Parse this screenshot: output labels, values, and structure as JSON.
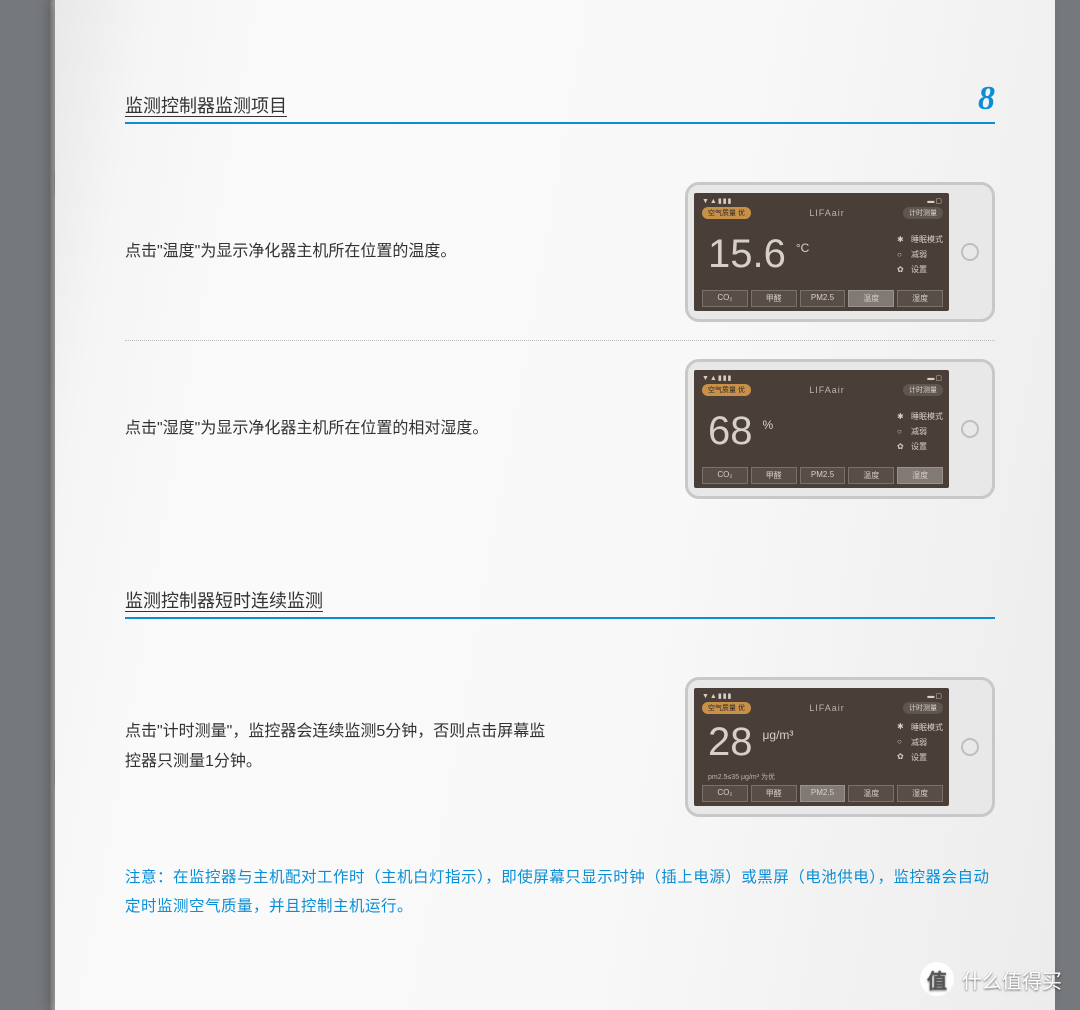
{
  "page_number": "8",
  "section1": {
    "title": "监测控制器监测项目",
    "items": [
      {
        "text": "点击\"温度\"为显示净化器主机所在位置的温度。"
      },
      {
        "text": "点击\"湿度\"为显示净化器主机所在位置的相对湿度。"
      }
    ]
  },
  "section2": {
    "title": "监测控制器短时连续监测",
    "text": "点击\"计时测量\"，监控器会连续监测5分钟，否则点击屏幕监控器只测量1分钟。",
    "note": "注意：在监控器与主机配对工作时（主机白灯指示），即使屏幕只显示时钟（插上电源）或黑屏（电池供电），监控器会自动定时监测空气质量，并且控制主机运行。"
  },
  "device_common": {
    "brand": "LIFAair",
    "status_left": "▼▲▮▮▮",
    "status_right": "▬▢",
    "air_quality_label": "空气质量",
    "air_quality_value": "优",
    "timer_label": "计时测量",
    "side_mode": "睡眠模式",
    "side_speed": "减弱",
    "side_settings": "设置",
    "tabs": [
      "CO₂",
      "甲醛",
      "PM2.5",
      "温度",
      "湿度"
    ]
  },
  "devices": [
    {
      "bignum": "15.6",
      "unit": "°C",
      "active_tab": 3,
      "subline": ""
    },
    {
      "bignum": "68",
      "unit": "%",
      "active_tab": 4,
      "subline": ""
    },
    {
      "bignum": "28",
      "unit": "μg/m³",
      "active_tab": 2,
      "subline": "pm2.5≤35 μg/m³ 为优"
    }
  ],
  "colors": {
    "accent": "#0a8fd6",
    "page_bg": "#f8f8f8",
    "text": "#333333",
    "screen_bg": "#4a3f38",
    "screen_fg": "#d8d0c8",
    "pill_on": "#e8a84a"
  },
  "watermark": {
    "badge": "值",
    "text": "什么值得买"
  }
}
